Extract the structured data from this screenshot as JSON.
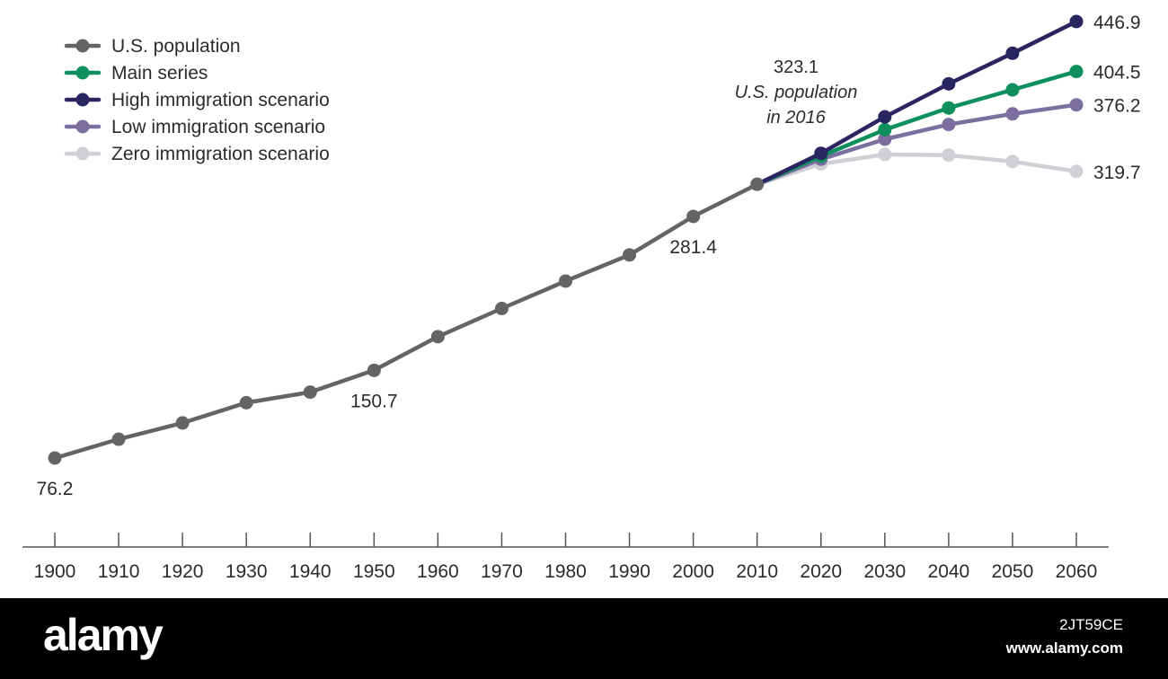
{
  "chart_data": {
    "type": "line",
    "title": "",
    "xlabel": "",
    "ylabel": "",
    "x": [
      1900,
      1910,
      1920,
      1930,
      1940,
      1950,
      1960,
      1970,
      1980,
      1990,
      2000,
      2010,
      2020,
      2030,
      2040,
      2050,
      2060
    ],
    "x_tick_labels": [
      "1900",
      "1910",
      "1920",
      "1930",
      "1940",
      "1950",
      "1960",
      "1970",
      "1980",
      "1990",
      "2000",
      "2010",
      "2020",
      "2030",
      "2040",
      "2050",
      "2060"
    ],
    "ylim": [
      40,
      460
    ],
    "grid": false,
    "legend_position": "top-left",
    "series": [
      {
        "name": "U.S. population",
        "color": "#646464",
        "x": [
          1900,
          1910,
          1920,
          1930,
          1940,
          1950,
          1960,
          1970,
          1980,
          1990,
          2000,
          2010
        ],
        "y": [
          76.2,
          92.2,
          106.0,
          123.2,
          132.2,
          150.7,
          179.3,
          203.2,
          226.5,
          248.7,
          281.4,
          308.7
        ]
      },
      {
        "name": "Main series",
        "color": "#0d8f5e",
        "x": [
          2010,
          2020,
          2030,
          2040,
          2050,
          2060
        ],
        "y": [
          308.7,
          332.6,
          355.1,
          373.5,
          388.9,
          404.5
        ]
      },
      {
        "name": "High immigration scenario",
        "color": "#2a2460",
        "x": [
          2010,
          2020,
          2030,
          2040,
          2050,
          2060
        ],
        "y": [
          308.7,
          335.0,
          366.0,
          394.0,
          420.0,
          446.9
        ]
      },
      {
        "name": "Low immigration scenario",
        "color": "#7b6f9f",
        "x": [
          2010,
          2020,
          2030,
          2040,
          2050,
          2060
        ],
        "y": [
          308.7,
          330.0,
          347.0,
          359.5,
          368.5,
          376.2
        ]
      },
      {
        "name": "Zero immigration scenario",
        "color": "#cfcfd6",
        "x": [
          2010,
          2020,
          2030,
          2040,
          2050,
          2060
        ],
        "y": [
          308.7,
          326.0,
          334.0,
          333.5,
          328.0,
          319.7
        ]
      }
    ],
    "data_labels": [
      {
        "series": "U.S. population",
        "x": 1900,
        "y": 76.2,
        "text": "76.2",
        "anchor": "below"
      },
      {
        "series": "U.S. population",
        "x": 1950,
        "y": 150.7,
        "text": "150.7",
        "anchor": "below"
      },
      {
        "series": "U.S. population",
        "x": 2000,
        "y": 281.4,
        "text": "281.4",
        "anchor": "below"
      },
      {
        "series": "High immigration scenario",
        "x": 2060,
        "y": 446.9,
        "text": "446.9",
        "anchor": "right"
      },
      {
        "series": "Main series",
        "x": 2060,
        "y": 404.5,
        "text": "404.5",
        "anchor": "right"
      },
      {
        "series": "Low immigration scenario",
        "x": 2060,
        "y": 376.2,
        "text": "376.2",
        "anchor": "right"
      },
      {
        "series": "Zero immigration scenario",
        "x": 2060,
        "y": 319.7,
        "text": "319.7",
        "anchor": "right"
      }
    ],
    "annotation": {
      "value": "323.1",
      "line1": "U.S. population",
      "line2": "in 2016"
    }
  },
  "watermark": {
    "logo": "alamy",
    "image_id": "2JT59CE",
    "url": "www.alamy.com"
  }
}
